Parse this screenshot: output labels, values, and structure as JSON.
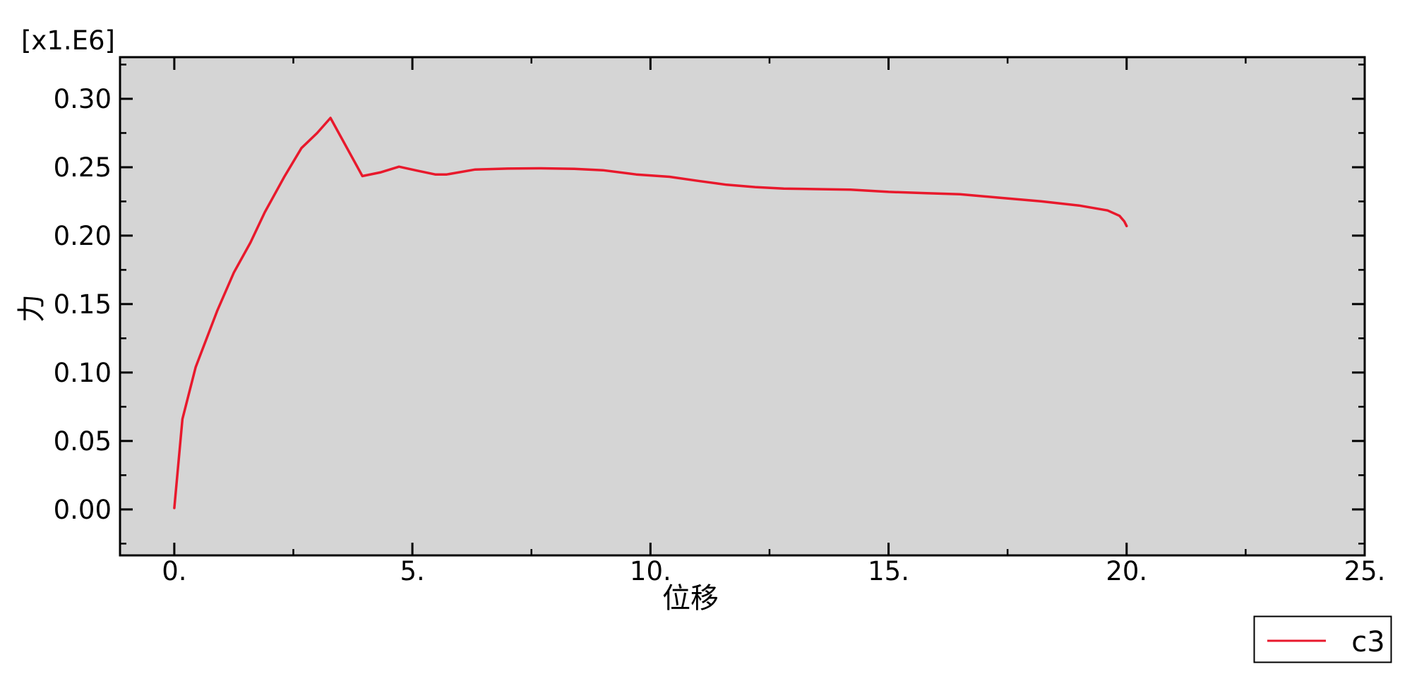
{
  "chart_data": {
    "type": "line",
    "title": "",
    "xlabel": "位移",
    "ylabel": "力",
    "y_multiplier_label": "[x1.E6]",
    "xlim": [
      -1.14,
      25.0
    ],
    "ylim": [
      -0.0336,
      0.3304
    ],
    "grid": false,
    "plot_bg_color": "#d5d5d5",
    "axis_color": "#000000",
    "legend_position": "bottom-right-outside",
    "x_ticks": {
      "major": [
        0,
        5,
        10,
        15,
        20,
        25
      ],
      "labels": [
        "0.",
        "5.",
        "10.",
        "15.",
        "20.",
        "25."
      ],
      "minor": [
        2.5,
        7.5,
        12.5,
        17.5,
        22.5
      ]
    },
    "y_ticks": {
      "major": [
        0.0,
        0.05,
        0.1,
        0.15,
        0.2,
        0.25,
        0.3
      ],
      "labels": [
        "0.00",
        "0.05",
        "0.10",
        "0.15",
        "0.20",
        "0.25",
        "0.30"
      ],
      "minor": [
        -0.025,
        0.025,
        0.075,
        0.125,
        0.175,
        0.225,
        0.275,
        0.325
      ]
    },
    "series": [
      {
        "name": "c3",
        "color": "#e8192c",
        "points": [
          [
            0.0,
            0.001
          ],
          [
            0.17,
            0.066
          ],
          [
            0.45,
            0.104
          ],
          [
            0.9,
            0.145
          ],
          [
            1.25,
            0.173
          ],
          [
            1.6,
            0.195
          ],
          [
            1.9,
            0.217
          ],
          [
            2.31,
            0.243
          ],
          [
            2.67,
            0.264
          ],
          [
            3.0,
            0.275
          ],
          [
            3.28,
            0.286
          ],
          [
            3.95,
            0.2435
          ],
          [
            4.34,
            0.2463
          ],
          [
            4.72,
            0.2504
          ],
          [
            5.1,
            0.2475
          ],
          [
            5.48,
            0.2447
          ],
          [
            5.72,
            0.2447
          ],
          [
            6.32,
            0.2483
          ],
          [
            7.0,
            0.249
          ],
          [
            7.7,
            0.2492
          ],
          [
            8.4,
            0.2488
          ],
          [
            9.0,
            0.2478
          ],
          [
            9.7,
            0.2447
          ],
          [
            10.4,
            0.243
          ],
          [
            11.0,
            0.24
          ],
          [
            11.6,
            0.2372
          ],
          [
            12.2,
            0.2355
          ],
          [
            12.8,
            0.2344
          ],
          [
            13.5,
            0.234
          ],
          [
            14.2,
            0.2336
          ],
          [
            15.0,
            0.232
          ],
          [
            15.8,
            0.231
          ],
          [
            16.5,
            0.2302
          ],
          [
            17.3,
            0.2278
          ],
          [
            18.2,
            0.2251
          ],
          [
            19.0,
            0.222
          ],
          [
            19.6,
            0.2184
          ],
          [
            19.85,
            0.2145
          ],
          [
            19.95,
            0.2105
          ],
          [
            20.0,
            0.207
          ]
        ]
      }
    ],
    "legend": {
      "entries": [
        "c3"
      ]
    }
  }
}
